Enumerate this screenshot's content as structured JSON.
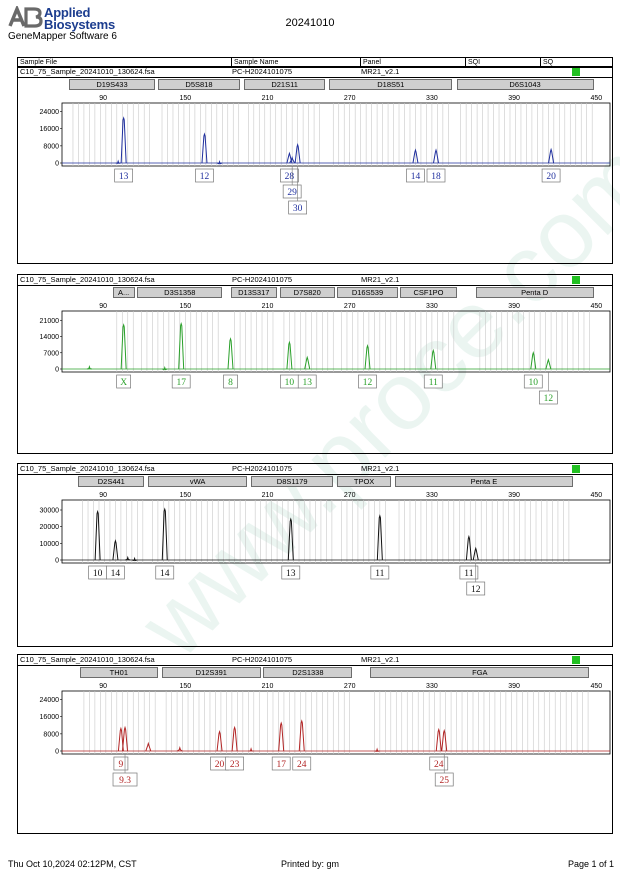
{
  "header": {
    "logo_text_line1": "Applied",
    "logo_text_line2": "Biosystems",
    "software": "GeneMapper Software 6",
    "date": "20241010"
  },
  "columns": {
    "sample_file": "Sample File",
    "sample_name": "Sample Name",
    "panel": "Panel",
    "sqi": "SQI",
    "sq": "SQ"
  },
  "watermark": "www.proce.com.cn",
  "footer": {
    "datetime": "Thu Oct 10,2024 02:12PM, CST",
    "printed_by": "Printed by: gm",
    "page": "Page 1 of 1"
  },
  "status_color": "#22c022",
  "chart_data": [
    {
      "type": "line",
      "file": "C10_75_Sample_20241010_130624.fsa",
      "sample_name": "PC-H2024101075",
      "panel": "MR21_v2.1",
      "color": "#1f2f9e",
      "x_ticks": [
        90,
        150,
        210,
        270,
        330,
        390,
        450
      ],
      "y_ticks": [
        "24000",
        "16000",
        "8000",
        "0"
      ],
      "ylim": [
        0,
        28000
      ],
      "markers": [
        {
          "name": "D19S433",
          "start": 65,
          "end": 128
        },
        {
          "name": "D5S818",
          "start": 130,
          "end": 190
        },
        {
          "name": "D21S11",
          "start": 193,
          "end": 252
        },
        {
          "name": "D18S51",
          "start": 255,
          "end": 345
        },
        {
          "name": "D6S1043",
          "start": 348,
          "end": 448
        }
      ],
      "peaks": [
        {
          "x": 105,
          "y": 21000
        },
        {
          "x": 164,
          "y": 13500
        },
        {
          "x": 226,
          "y": 4500
        },
        {
          "x": 228,
          "y": 2500
        },
        {
          "x": 232,
          "y": 8500
        },
        {
          "x": 318,
          "y": 6000
        },
        {
          "x": 333,
          "y": 6000
        },
        {
          "x": 417,
          "y": 6300
        },
        {
          "x": 101,
          "y": 800
        },
        {
          "x": 175,
          "y": 600
        }
      ],
      "labels": [
        {
          "x": 105,
          "row": 0,
          "text": "13"
        },
        {
          "x": 164,
          "row": 0,
          "text": "12"
        },
        {
          "x": 226,
          "row": 0,
          "text": "28"
        },
        {
          "x": 228,
          "row": 1,
          "text": "29"
        },
        {
          "x": 232,
          "row": 2,
          "text": "30"
        },
        {
          "x": 318,
          "row": 0,
          "text": "14"
        },
        {
          "x": 333,
          "row": 0,
          "text": "18"
        },
        {
          "x": 417,
          "row": 0,
          "text": "20"
        }
      ]
    },
    {
      "type": "line",
      "file": "C10_75_Sample_20241010_130624.fsa",
      "sample_name": "PC-H2024101075",
      "panel": "MR21_v2.1",
      "color": "#2aa02a",
      "x_ticks": [
        90,
        150,
        210,
        270,
        330,
        390,
        450
      ],
      "y_ticks": [
        "21000",
        "14000",
        "7000",
        "0"
      ],
      "ylim": [
        0,
        25000
      ],
      "markers": [
        {
          "name": "A...",
          "start": 97,
          "end": 113
        },
        {
          "name": "D3S1358",
          "start": 115,
          "end": 177
        },
        {
          "name": "D13S317",
          "start": 183,
          "end": 217
        },
        {
          "name": "D7S820",
          "start": 219,
          "end": 259
        },
        {
          "name": "D16S539",
          "start": 261,
          "end": 305
        },
        {
          "name": "CSF1PO",
          "start": 307,
          "end": 348
        },
        {
          "name": "Penta D",
          "start": 362,
          "end": 448
        }
      ],
      "peaks": [
        {
          "x": 105,
          "y": 19000
        },
        {
          "x": 147,
          "y": 19500
        },
        {
          "x": 183,
          "y": 13000
        },
        {
          "x": 226,
          "y": 11500
        },
        {
          "x": 239,
          "y": 5000
        },
        {
          "x": 283,
          "y": 10000
        },
        {
          "x": 331,
          "y": 8000
        },
        {
          "x": 404,
          "y": 7000
        },
        {
          "x": 415,
          "y": 4000
        },
        {
          "x": 80,
          "y": 1000
        },
        {
          "x": 135,
          "y": 600
        }
      ],
      "labels": [
        {
          "x": 105,
          "row": 0,
          "text": "X"
        },
        {
          "x": 147,
          "row": 0,
          "text": "17"
        },
        {
          "x": 183,
          "row": 0,
          "text": "8"
        },
        {
          "x": 226,
          "row": 0,
          "text": "10"
        },
        {
          "x": 239,
          "row": 0,
          "text": "13"
        },
        {
          "x": 283,
          "row": 0,
          "text": "12"
        },
        {
          "x": 331,
          "row": 0,
          "text": "11"
        },
        {
          "x": 404,
          "row": 0,
          "text": "10"
        },
        {
          "x": 415,
          "row": 1,
          "text": "12"
        }
      ]
    },
    {
      "type": "line",
      "file": "C10_75_Sample_20241010_130624.fsa",
      "sample_name": "PC-H2024101075",
      "panel": "MR21_v2.1",
      "color": "#111111",
      "x_ticks": [
        90,
        150,
        210,
        270,
        330,
        390,
        450
      ],
      "y_ticks": [
        "30000",
        "20000",
        "10000",
        "0"
      ],
      "ylim": [
        0,
        36000
      ],
      "markers": [
        {
          "name": "D2S441",
          "start": 72,
          "end": 120
        },
        {
          "name": "vWA",
          "start": 123,
          "end": 195
        },
        {
          "name": "D8S1179",
          "start": 198,
          "end": 258
        },
        {
          "name": "TPOX",
          "start": 261,
          "end": 300
        },
        {
          "name": "Penta E",
          "start": 303,
          "end": 433
        }
      ],
      "peaks": [
        {
          "x": 86,
          "y": 29000
        },
        {
          "x": 99,
          "y": 11500
        },
        {
          "x": 135,
          "y": 30500
        },
        {
          "x": 227,
          "y": 24500
        },
        {
          "x": 292,
          "y": 26500
        },
        {
          "x": 357,
          "y": 14000
        },
        {
          "x": 362,
          "y": 7000
        },
        {
          "x": 108,
          "y": 1500
        },
        {
          "x": 113,
          "y": 900
        }
      ],
      "labels": [
        {
          "x": 86,
          "row": 0,
          "text": "10"
        },
        {
          "x": 99,
          "row": 0,
          "text": "14"
        },
        {
          "x": 135,
          "row": 0,
          "text": "14"
        },
        {
          "x": 227,
          "row": 0,
          "text": "13"
        },
        {
          "x": 292,
          "row": 0,
          "text": "11"
        },
        {
          "x": 357,
          "row": 0,
          "text": "11"
        },
        {
          "x": 362,
          "row": 1,
          "text": "12"
        }
      ]
    },
    {
      "type": "line",
      "file": "C10_75_Sample_20241010_130624.fsa",
      "sample_name": "PC-H2024101075",
      "panel": "MR21_v2.1",
      "color": "#b22424",
      "x_ticks": [
        90,
        150,
        210,
        270,
        330,
        390,
        450
      ],
      "y_ticks": [
        "24000",
        "16000",
        "8000",
        "0"
      ],
      "ylim": [
        0,
        28000
      ],
      "markers": [
        {
          "name": "TH01",
          "start": 73,
          "end": 130
        },
        {
          "name": "D12S391",
          "start": 133,
          "end": 205
        },
        {
          "name": "D2S1338",
          "start": 207,
          "end": 272
        },
        {
          "name": "FGA",
          "start": 285,
          "end": 445
        }
      ],
      "peaks": [
        {
          "x": 103,
          "y": 10500
        },
        {
          "x": 106,
          "y": 11000
        },
        {
          "x": 123,
          "y": 3500
        },
        {
          "x": 175,
          "y": 9000
        },
        {
          "x": 186,
          "y": 11000
        },
        {
          "x": 220,
          "y": 13000
        },
        {
          "x": 235,
          "y": 14000
        },
        {
          "x": 335,
          "y": 10000
        },
        {
          "x": 339,
          "y": 9500
        },
        {
          "x": 146,
          "y": 1500
        },
        {
          "x": 198,
          "y": 1000
        },
        {
          "x": 290,
          "y": 800
        }
      ],
      "labels": [
        {
          "x": 103,
          "row": 0,
          "text": "9"
        },
        {
          "x": 106,
          "row": 1,
          "text": "9.3"
        },
        {
          "x": 175,
          "row": 0,
          "text": "20"
        },
        {
          "x": 186,
          "row": 0,
          "text": "23"
        },
        {
          "x": 220,
          "row": 0,
          "text": "17"
        },
        {
          "x": 235,
          "row": 0,
          "text": "24"
        },
        {
          "x": 335,
          "row": 0,
          "text": "24"
        },
        {
          "x": 339,
          "row": 1,
          "text": "25"
        }
      ]
    }
  ]
}
